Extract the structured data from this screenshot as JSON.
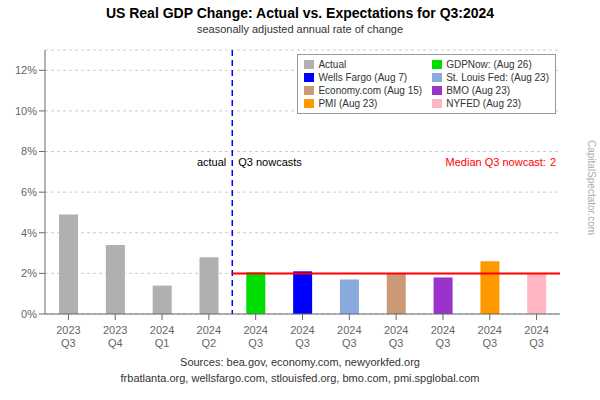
{
  "chart_data": {
    "type": "bar",
    "title": "US Real GDP Change: Actual vs. Expectations for Q3:2024",
    "subtitle": "seasonally adjusted annual rate of change",
    "categories": [
      "2023\nQ3",
      "2023\nQ4",
      "2024\nQ1",
      "2024\nQ2",
      "2024\nQ3",
      "2024\nQ3",
      "2024\nQ3",
      "2024\nQ3",
      "2024\nQ3",
      "2024\nQ3",
      "2024\nQ3"
    ],
    "series": [
      {
        "name": "Actual",
        "color": "#b0b0b0",
        "values": [
          4.9,
          3.4,
          1.4,
          2.8,
          null,
          null,
          null,
          null,
          null,
          null,
          null
        ]
      },
      {
        "name": "GDPNow: (Aug 26)",
        "color": "#00dd00",
        "values": [
          null,
          null,
          null,
          null,
          2.05,
          null,
          null,
          null,
          null,
          null,
          null
        ]
      },
      {
        "name": "Wells Fargo (Aug 7)",
        "color": "#0000ff",
        "values": [
          null,
          null,
          null,
          null,
          null,
          2.1,
          null,
          null,
          null,
          null,
          null
        ]
      },
      {
        "name": "St. Louis Fed: (Aug 23)",
        "color": "#88aadd",
        "values": [
          null,
          null,
          null,
          null,
          null,
          null,
          1.7,
          null,
          null,
          null,
          null
        ]
      },
      {
        "name": "Economy.com (Aug 15)",
        "color": "#cc9977",
        "values": [
          null,
          null,
          null,
          null,
          null,
          null,
          null,
          2.0,
          null,
          null,
          null
        ]
      },
      {
        "name": "BMO (Aug 23)",
        "color": "#9933cc",
        "values": [
          null,
          null,
          null,
          null,
          null,
          null,
          null,
          null,
          1.8,
          null,
          null
        ]
      },
      {
        "name": "PMI (Aug 23)",
        "color": "#ff9900",
        "values": [
          null,
          null,
          null,
          null,
          null,
          null,
          null,
          null,
          null,
          2.6,
          null
        ]
      },
      {
        "name": "NYFED (Aug 23)",
        "color": "#ffb6c1",
        "values": [
          null,
          null,
          null,
          null,
          null,
          null,
          null,
          null,
          null,
          null,
          2.0
        ]
      }
    ],
    "stacked": true,
    "ylim": [
      0,
      13
    ],
    "yticks": [
      {
        "value": 0,
        "label": "0%"
      },
      {
        "value": 2,
        "label": "2%"
      },
      {
        "value": 4,
        "label": "4%"
      },
      {
        "value": 6,
        "label": "6%"
      },
      {
        "value": 8,
        "label": "8%"
      },
      {
        "value": 10,
        "label": "10%"
      },
      {
        "value": 12,
        "label": "12%"
      }
    ],
    "grid": true,
    "legend": "upper right",
    "median_line": 2.0,
    "annotations": [
      "actual",
      "Q3 nowcasts",
      "Median Q3 nowcast:",
      "2"
    ],
    "watermark": "CapitalSpectator.com",
    "sources": [
      "Sources: bea.gov, economy.com, newyorkfed.org",
      "frbatlanta.org, wellsfargo.com, stlouisfed.org, bmo.com, pmi.spglobal.com"
    ]
  }
}
